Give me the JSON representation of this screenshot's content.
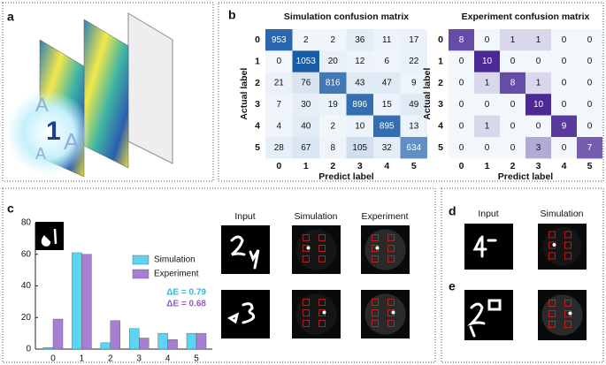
{
  "panels": [
    "a",
    "b",
    "c",
    "d",
    "e"
  ],
  "illustration": {
    "glyphs": [
      "A",
      "1",
      "A",
      "A"
    ]
  },
  "image_headers": {
    "c": [
      "Input",
      "Simulation",
      "Experiment"
    ],
    "d": [
      "Input",
      "Simulation"
    ]
  },
  "chart_data": [
    {
      "type": "heatmap",
      "title": "Simulation confusion matrix",
      "x_label": "Predict label",
      "y_label": "Actual label",
      "categories": [
        "0",
        "1",
        "2",
        "3",
        "4",
        "5"
      ],
      "color": "#1a5ba6",
      "values": [
        [
          953,
          2,
          2,
          36,
          11,
          17
        ],
        [
          0,
          1053,
          20,
          12,
          6,
          22
        ],
        [
          21,
          76,
          816,
          43,
          47,
          9
        ],
        [
          7,
          30,
          19,
          896,
          15,
          49
        ],
        [
          4,
          40,
          2,
          10,
          895,
          13
        ],
        [
          28,
          67,
          8,
          105,
          32,
          634
        ]
      ]
    },
    {
      "type": "heatmap",
      "title": "Experiment confusion matrix",
      "x_label": "Predict label",
      "y_label": "Actual label",
      "categories": [
        "0",
        "1",
        "2",
        "3",
        "4",
        "5"
      ],
      "color": "#4b2a95",
      "values": [
        [
          8,
          0,
          1,
          1,
          0,
          0
        ],
        [
          0,
          10,
          0,
          0,
          0,
          0
        ],
        [
          0,
          1,
          8,
          1,
          0,
          0
        ],
        [
          0,
          0,
          0,
          10,
          0,
          0
        ],
        [
          0,
          1,
          0,
          0,
          9,
          0
        ],
        [
          0,
          0,
          0,
          3,
          0,
          7
        ]
      ]
    },
    {
      "type": "bar",
      "categories": [
        "0",
        "1",
        "2",
        "3",
        "4",
        "5"
      ],
      "series": [
        {
          "name": "Simulation",
          "color": "#5cd4f2",
          "values": [
            1,
            61,
            4,
            13,
            10,
            10
          ]
        },
        {
          "name": "Experiment",
          "color": "#a67fd4",
          "values": [
            19,
            60,
            18,
            7,
            6,
            10
          ]
        }
      ],
      "ylim": [
        0,
        80
      ],
      "yticks": [
        0,
        20,
        40,
        60,
        80
      ],
      "annotations": [
        {
          "text": "ΔE = 0.79",
          "color": "#2fb8e0"
        },
        {
          "text": "ΔE = 0.68",
          "color": "#8e5cc4"
        }
      ]
    }
  ]
}
